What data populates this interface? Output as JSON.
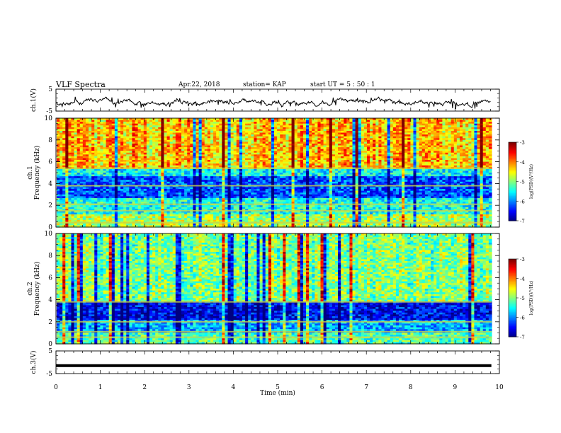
{
  "header": {
    "title": "VLF Spectra",
    "date": "Apr.22, 2018",
    "station": "station= KAP",
    "start": "start  UT  =   5  : 50 : 1"
  },
  "chart_data": [
    {
      "type": "line",
      "panel": "ch1-waveform",
      "ylabel": "ch.1(V)",
      "yticks": [
        "5",
        "-5"
      ],
      "ylim": [
        -5,
        5
      ],
      "xlim": [
        0,
        10
      ],
      "description_values": "noisy waveform centred near -1 V, spikes between about -4 and 2 V, data from 0 to ~9.8 min"
    },
    {
      "type": "heatmap",
      "panel": "ch1-spectrogram",
      "ylabel": "ch.1\nFrequency (kHz)",
      "ylabel_lines": [
        "ch.1",
        "Frequency (kHz)"
      ],
      "yticks": [
        "0",
        "2",
        "4",
        "6",
        "8",
        "10"
      ],
      "ylim": [
        0,
        10
      ],
      "xlim": [
        0,
        10
      ],
      "colorbar": {
        "label": "log(PSD)(V²/Hz)",
        "ticks": [
          "-3",
          "-4",
          "-5",
          "-6",
          "-7"
        ],
        "range": [
          -7,
          -3
        ]
      }
    },
    {
      "type": "heatmap",
      "panel": "ch2-spectrogram",
      "ylabel": "ch.2\nFrequency (kHz)",
      "ylabel_lines": [
        "ch.2",
        "Frequency (kHz)"
      ],
      "yticks": [
        "0",
        "2",
        "4",
        "6",
        "8",
        "10"
      ],
      "ylim": [
        0,
        10
      ],
      "xlim": [
        0,
        10
      ],
      "colorbar": {
        "label": "log(PSD)(V²/Hz)",
        "ticks": [
          "-3",
          "-4",
          "-5",
          "-6",
          "-7"
        ],
        "range": [
          -7,
          -3
        ]
      }
    },
    {
      "type": "line",
      "panel": "ch3-waveform",
      "ylabel": "ch.3(V)",
      "yticks": [
        "5",
        "-5"
      ],
      "ylim": [
        -5,
        5
      ],
      "xlim": [
        0,
        10
      ],
      "values_constant": -1.5
    }
  ],
  "xaxis": {
    "label": "Time (min)",
    "ticks": [
      "0",
      "1",
      "2",
      "3",
      "4",
      "5",
      "6",
      "7",
      "8",
      "9",
      "10"
    ]
  }
}
